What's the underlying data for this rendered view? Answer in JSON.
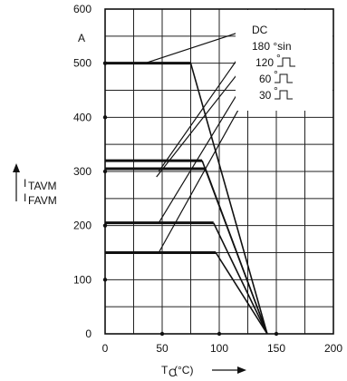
{
  "chart_data": {
    "type": "line",
    "title": "",
    "ylabel_lines": [
      "I",
      "I"
    ],
    "ylabel_subscripts": [
      "TAVM",
      "FAVM"
    ],
    "y_unit": "A",
    "xlabel_main": "T",
    "xlabel_sub": "C",
    "xlabel_unit": "(°C)",
    "xlim": [
      0,
      200
    ],
    "ylim": [
      0,
      600
    ],
    "x_ticks": [
      "0",
      "50",
      "100",
      "150",
      "200"
    ],
    "y_ticks": [
      "0",
      "100",
      "200",
      "300",
      "400",
      "500",
      "600"
    ],
    "grid": true,
    "legend_position": "top-right",
    "series": [
      {
        "name": "DC",
        "x": [
          0,
          75,
          142
        ],
        "y": [
          500,
          500,
          0
        ]
      },
      {
        "name": "180 °sin",
        "x": [
          0,
          85,
          142
        ],
        "y": [
          320,
          320,
          0
        ]
      },
      {
        "name": "120",
        "x": [
          0,
          88,
          142
        ],
        "y": [
          305,
          305,
          0
        ]
      },
      {
        "name": "60",
        "x": [
          0,
          95,
          142
        ],
        "y": [
          205,
          205,
          0
        ]
      },
      {
        "name": "30",
        "x": [
          0,
          97,
          142
        ],
        "y": [
          150,
          150,
          0
        ]
      }
    ],
    "leader_lines": [
      {
        "to": "DC",
        "from_x": 35,
        "from_y": 500
      },
      {
        "to": "180 °sin",
        "from_x": 47,
        "from_y": 300
      },
      {
        "to": "120",
        "from_x": 45,
        "from_y": 290
      },
      {
        "to": "60",
        "from_x": 47,
        "from_y": 205
      },
      {
        "to": "30",
        "from_x": 47,
        "from_y": 150
      }
    ]
  }
}
